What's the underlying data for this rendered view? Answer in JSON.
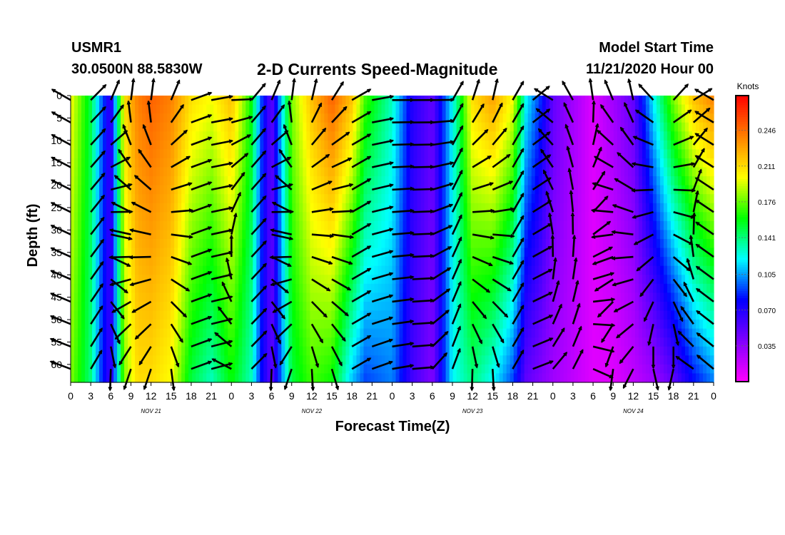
{
  "header": {
    "station": "USMR1",
    "coords": "30.0500N 88.5830W",
    "title": "2-D Currents Speed-Magnitude",
    "model_start_label": "Model Start Time",
    "model_start_value": "11/21/2020 Hour 00"
  },
  "chart_data": {
    "type": "heatmap",
    "title": "2-D Currents Speed-Magnitude",
    "xlabel": "Forecast Time(Z)",
    "ylabel": "Depth (ft)",
    "x_ticks": [
      "0",
      "3",
      "6",
      "9",
      "12",
      "15",
      "18",
      "21",
      "0",
      "3",
      "6",
      "9",
      "12",
      "15",
      "18",
      "21",
      "0",
      "3",
      "6",
      "9",
      "12",
      "15",
      "18",
      "21",
      "0",
      "3",
      "6",
      "9",
      "12",
      "15",
      "18",
      "21",
      "0"
    ],
    "x_range_hours": [
      0,
      96
    ],
    "date_labels": [
      {
        "text": "NOV 21",
        "hour": 12
      },
      {
        "text": "NOV 22",
        "hour": 36
      },
      {
        "text": "NOV 23",
        "hour": 60
      },
      {
        "text": "NOV 24",
        "hour": 84
      }
    ],
    "y_ticks": [
      0,
      5,
      10,
      15,
      20,
      25,
      30,
      35,
      40,
      45,
      50,
      55,
      60
    ],
    "y_range_ft": [
      0,
      64
    ],
    "y_inverted": true,
    "colorbar": {
      "label": "Knots",
      "ticks": [
        0.035,
        0.07,
        0.105,
        0.141,
        0.176,
        0.211,
        0.246
      ],
      "tick_labels": [
        "0.035",
        "0.070",
        "0.105",
        "0.141",
        "0.176",
        "0.211",
        "0.246"
      ],
      "range": [
        0.0,
        0.28
      ],
      "colors": [
        "#ff00ff",
        "#8000ff",
        "#0000ff",
        "#00ffff",
        "#00ff00",
        "#ffff00",
        "#ff8000",
        "#ff0000"
      ]
    },
    "speed_profile": {
      "hours": [
        0,
        3,
        4.5,
        6,
        8,
        10,
        12,
        15,
        18,
        21,
        24,
        27,
        28.5,
        30,
        33,
        36,
        39,
        42,
        44,
        48,
        51,
        54,
        57,
        60,
        63,
        66,
        68,
        70,
        72,
        75,
        78,
        81,
        84,
        87,
        90,
        93,
        96
      ],
      "surface": [
        0.2,
        0.15,
        0.1,
        0.06,
        0.21,
        0.24,
        0.25,
        0.24,
        0.21,
        0.2,
        0.22,
        0.16,
        0.09,
        0.05,
        0.18,
        0.22,
        0.25,
        0.22,
        0.17,
        0.13,
        0.07,
        0.05,
        0.12,
        0.21,
        0.23,
        0.2,
        0.12,
        0.09,
        0.05,
        0.03,
        0.01,
        0.03,
        0.05,
        0.12,
        0.18,
        0.22,
        0.24
      ],
      "bottom": [
        0.18,
        0.14,
        0.09,
        0.06,
        0.18,
        0.21,
        0.21,
        0.2,
        0.15,
        0.13,
        0.16,
        0.13,
        0.08,
        0.05,
        0.15,
        0.17,
        0.16,
        0.11,
        0.09,
        0.1,
        0.06,
        0.04,
        0.12,
        0.14,
        0.12,
        0.09,
        0.05,
        0.04,
        0.03,
        0.02,
        0.01,
        0.01,
        0.02,
        0.03,
        0.05,
        0.08,
        0.1
      ]
    },
    "vector_hours": [
      0,
      3,
      6,
      9,
      12,
      15,
      18,
      21,
      24,
      27,
      30,
      33,
      36,
      39,
      42,
      45,
      48,
      51,
      54,
      57,
      60,
      63,
      66,
      69,
      72,
      75,
      78,
      81,
      84,
      87,
      90,
      93,
      96
    ],
    "vector_depths": [
      1,
      6,
      11,
      16,
      21,
      26,
      31,
      36,
      41,
      46,
      51,
      56,
      61
    ],
    "vector_direction_profile": {
      "hours": [
        0,
        3,
        6,
        9,
        12,
        15,
        18,
        21,
        24,
        27,
        30,
        33,
        36,
        39,
        42,
        45,
        48,
        51,
        54,
        57,
        60,
        63,
        66,
        69,
        72,
        75,
        78,
        81,
        84,
        87,
        90,
        93,
        96
      ],
      "surface_deg": [
        300,
        45,
        20,
        10,
        10,
        20,
        70,
        80,
        90,
        40,
        20,
        10,
        10,
        30,
        60,
        80,
        90,
        90,
        90,
        30,
        15,
        10,
        30,
        50,
        300,
        330,
        350,
        340,
        350,
        320,
        40,
        60,
        300
      ],
      "bottom_deg": [
        290,
        30,
        190,
        190,
        190,
        180,
        70,
        75,
        290,
        45,
        190,
        190,
        185,
        170,
        60,
        70,
        80,
        85,
        40,
        20,
        190,
        185,
        30,
        70,
        45,
        30,
        120,
        180,
        200,
        160,
        200,
        300,
        310
      ]
    }
  }
}
